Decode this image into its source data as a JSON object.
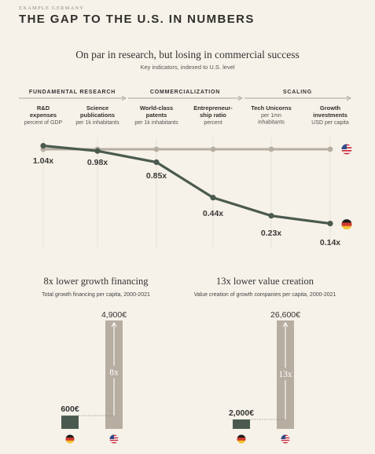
{
  "header": {
    "kicker": "EXAMPLE GERMANY",
    "title": "THE GAP TO THE U.S. IN NUMBERS"
  },
  "top_chart": {
    "title": "On par in research, but losing in commercial success",
    "subtitle": "Key indicators, indexed to U.S. level"
  },
  "colors": {
    "germany_line": "#4b5a4f",
    "us_line": "#b7ada1",
    "bar_us": "#b7ada1",
    "bar_de": "#4b5a4f",
    "background": "#f6f2e9"
  },
  "chart_data": [
    {
      "type": "line",
      "title": "On par in research, but losing in commercial success",
      "subtitle": "Key indicators, indexed to U.S. level",
      "sections": [
        "FUNDAMENTAL RESEARCH",
        "COMMERCIALIZATION",
        "SCALING"
      ],
      "categories": [
        {
          "name": "R&D expenses",
          "unit": "percent of GDP"
        },
        {
          "name": "Science publications",
          "unit": "per 1k inhabitants"
        },
        {
          "name": "World-class patents",
          "unit": "per 1k inhabitants"
        },
        {
          "name": "Entrepreneur-ship ratio",
          "unit": "percent"
        },
        {
          "name": "Tech Unicorns",
          "unit": "per 1mn inhabitants"
        },
        {
          "name": "Growth investments",
          "unit": "USD per capita"
        }
      ],
      "series": [
        {
          "flag": "us-flag",
          "values": [
            1,
            1,
            1,
            1,
            1,
            1
          ]
        },
        {
          "flag": "germany-flag",
          "values": [
            1.04,
            0.98,
            0.85,
            0.44,
            0.23,
            0.14
          ],
          "labels": [
            "1.04x",
            "0.98x",
            "0.85x",
            "0.44x",
            "0.23x",
            "0.14x"
          ]
        }
      ],
      "ylim": [
        0,
        1.1
      ]
    },
    {
      "type": "bar",
      "title": "8x lower growth financing",
      "subtitle": "Total growth financing per capita, 2000-2021",
      "categories": [
        "germany-flag",
        "us-flag"
      ],
      "values": [
        600,
        4900
      ],
      "value_labels": [
        "600€",
        "4,900€"
      ],
      "ratio_label": "8x"
    },
    {
      "type": "bar",
      "title": "13x lower value creation",
      "subtitle": "Value creation of growth companies per capita, 2000-2021",
      "categories": [
        "germany-flag",
        "us-flag"
      ],
      "values": [
        2000,
        26600
      ],
      "value_labels": [
        "2,000€",
        "26,600€"
      ],
      "ratio_label": "13x"
    }
  ]
}
